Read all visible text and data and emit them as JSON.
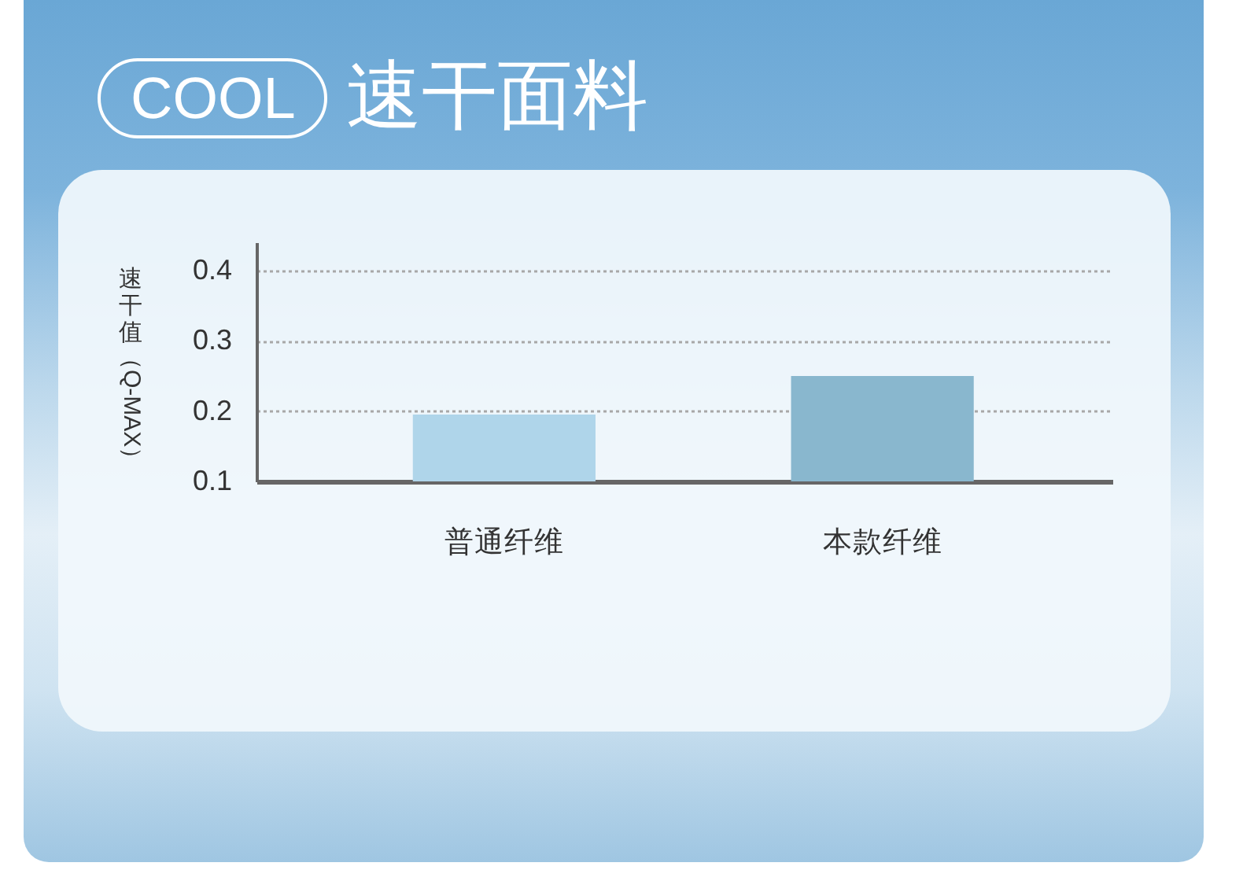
{
  "chart_data": {
    "type": "bar",
    "title": "COOL 速干面料",
    "ylabel": "速干值（Q-MAX）",
    "categories": [
      "普通纤维",
      "本款纤维"
    ],
    "values": [
      0.195,
      0.25
    ],
    "colors": [
      "#afd5ea",
      "#89b7ce"
    ],
    "ylim": [
      0.1,
      0.44
    ],
    "yticks": [
      0.1,
      0.2,
      0.3,
      0.4
    ],
    "grid": "y"
  }
}
